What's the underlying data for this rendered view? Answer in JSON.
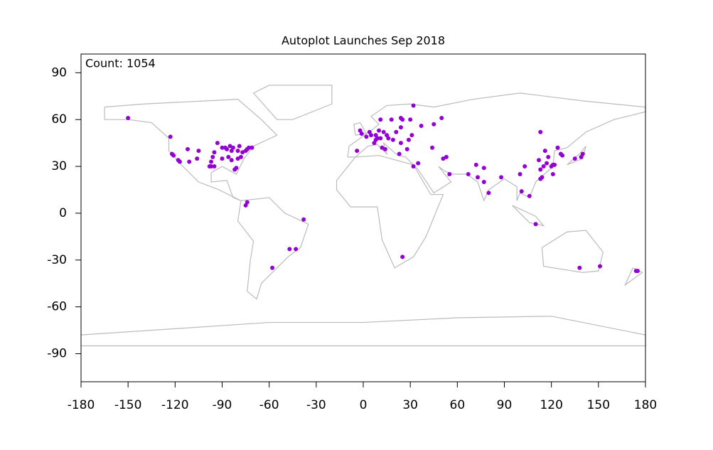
{
  "chart_data": {
    "type": "scatter",
    "title": "Autoplot Launches Sep 2018",
    "annotation": "Count: 1054",
    "color": "#9400d3",
    "xlim": [
      -180,
      180
    ],
    "ylim": [
      -108,
      102
    ],
    "xticks": [
      -180,
      -150,
      -120,
      -90,
      -60,
      -30,
      0,
      30,
      60,
      90,
      120,
      150,
      180
    ],
    "yticks": [
      -90,
      -60,
      -30,
      0,
      30,
      60,
      90
    ],
    "x": [
      -150,
      -123,
      -122,
      -121,
      -118,
      -117,
      -112,
      -105,
      -106,
      -111,
      -97,
      -97,
      -95,
      -98,
      -96,
      -95,
      -93,
      -90,
      -88,
      -87,
      -85,
      -84,
      -83,
      -86,
      -84,
      -90,
      -80,
      -78,
      -77,
      -75,
      -74,
      -73,
      -71,
      -79,
      -80,
      -82,
      -81,
      -75,
      -74,
      -38,
      -47,
      -43,
      -58,
      -4,
      -2,
      -1,
      2,
      4,
      5,
      8,
      9,
      11,
      13,
      10,
      8,
      7,
      12,
      14,
      16,
      19,
      21,
      24,
      18,
      25,
      24,
      30,
      37,
      31,
      28,
      23,
      29,
      15,
      24,
      11,
      32,
      50,
      45,
      44,
      35,
      32,
      51,
      53,
      55,
      25,
      67,
      73,
      72,
      77,
      77,
      80,
      88,
      101,
      106,
      103,
      100,
      114,
      113,
      115,
      117,
      120,
      121,
      118,
      116,
      112,
      113,
      127,
      126,
      124,
      135,
      139,
      140,
      121,
      122,
      110,
      113,
      138,
      151,
      175,
      174
    ],
    "values": [
      61,
      49,
      38,
      37,
      34,
      33,
      41,
      40,
      35,
      33,
      33,
      30,
      30,
      30,
      36,
      39,
      45,
      42,
      42,
      41,
      43,
      40,
      42,
      36,
      34,
      35,
      35,
      36,
      39,
      40,
      41,
      42,
      42,
      43,
      40,
      28,
      29,
      5,
      7,
      -4,
      -23,
      -23,
      -35,
      40,
      53,
      51,
      49,
      52,
      50,
      50,
      48,
      48,
      52,
      53,
      47,
      45,
      42,
      41,
      48,
      47,
      52,
      45,
      60,
      60,
      55,
      60,
      56,
      50,
      41,
      38,
      47,
      50,
      61,
      60,
      69,
      61,
      57,
      42,
      32,
      30,
      35,
      36,
      25,
      -28,
      25,
      23,
      31,
      29,
      20,
      13,
      23,
      14,
      11,
      30,
      25,
      23,
      28,
      30,
      32,
      30,
      31,
      36,
      40,
      34,
      52,
      37,
      38,
      42,
      35,
      36,
      38,
      25,
      31,
      -7,
      22,
      -35,
      -34,
      -37,
      -37
    ]
  }
}
